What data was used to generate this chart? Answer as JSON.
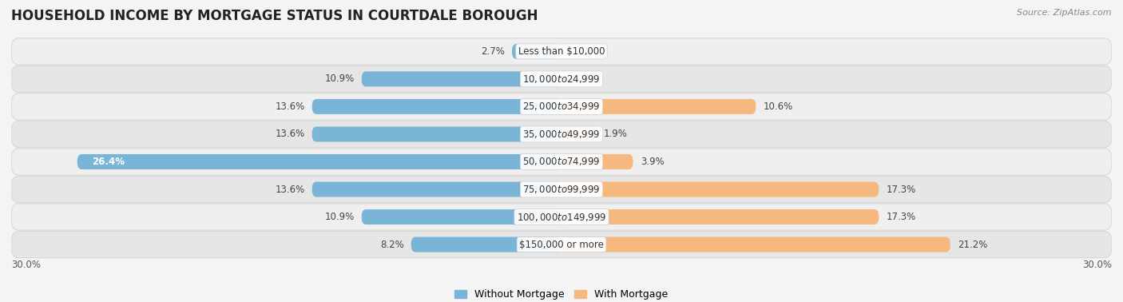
{
  "title": "HOUSEHOLD INCOME BY MORTGAGE STATUS IN COURTDALE BOROUGH",
  "source": "Source: ZipAtlas.com",
  "categories": [
    "Less than $10,000",
    "$10,000 to $24,999",
    "$25,000 to $34,999",
    "$35,000 to $49,999",
    "$50,000 to $74,999",
    "$75,000 to $99,999",
    "$100,000 to $149,999",
    "$150,000 or more"
  ],
  "without_mortgage": [
    2.7,
    10.9,
    13.6,
    13.6,
    26.4,
    13.6,
    10.9,
    8.2
  ],
  "with_mortgage": [
    0.0,
    0.0,
    10.6,
    1.9,
    3.9,
    17.3,
    17.3,
    21.2
  ],
  "color_without": "#7ab5d8",
  "color_with": "#f5b97f",
  "xlim": 30.0,
  "legend_without": "Without Mortgage",
  "legend_with": "With Mortgage",
  "title_fontsize": 12,
  "label_fontsize": 8.5,
  "bar_height": 0.55,
  "fig_bg": "#f4f4f4",
  "row_bg_light": "#ececec",
  "row_bg_dark": "#e0e0e0",
  "row_border": "#d0d0d0"
}
